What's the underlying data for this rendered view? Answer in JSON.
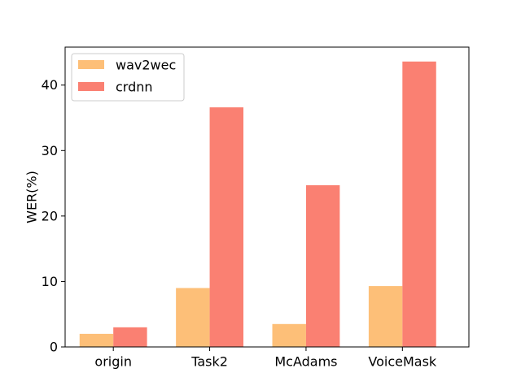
{
  "chart_data": {
    "type": "bar",
    "title": "",
    "xlabel": "",
    "ylabel": "WER(%)",
    "categories": [
      "origin",
      "Task2",
      "McAdams",
      "VoiceMask"
    ],
    "series": [
      {
        "name": "wav2wec",
        "color": "#FDBF78",
        "values": [
          2.0,
          9.0,
          3.5,
          9.3
        ]
      },
      {
        "name": "crdnn",
        "color": "#FA8072",
        "values": [
          3.0,
          36.6,
          24.7,
          43.6
        ]
      }
    ],
    "ylim": [
      0,
      45.8
    ],
    "yticks": [
      0,
      10,
      20,
      30,
      40
    ],
    "grid": false,
    "legend_position": "top-left"
  }
}
